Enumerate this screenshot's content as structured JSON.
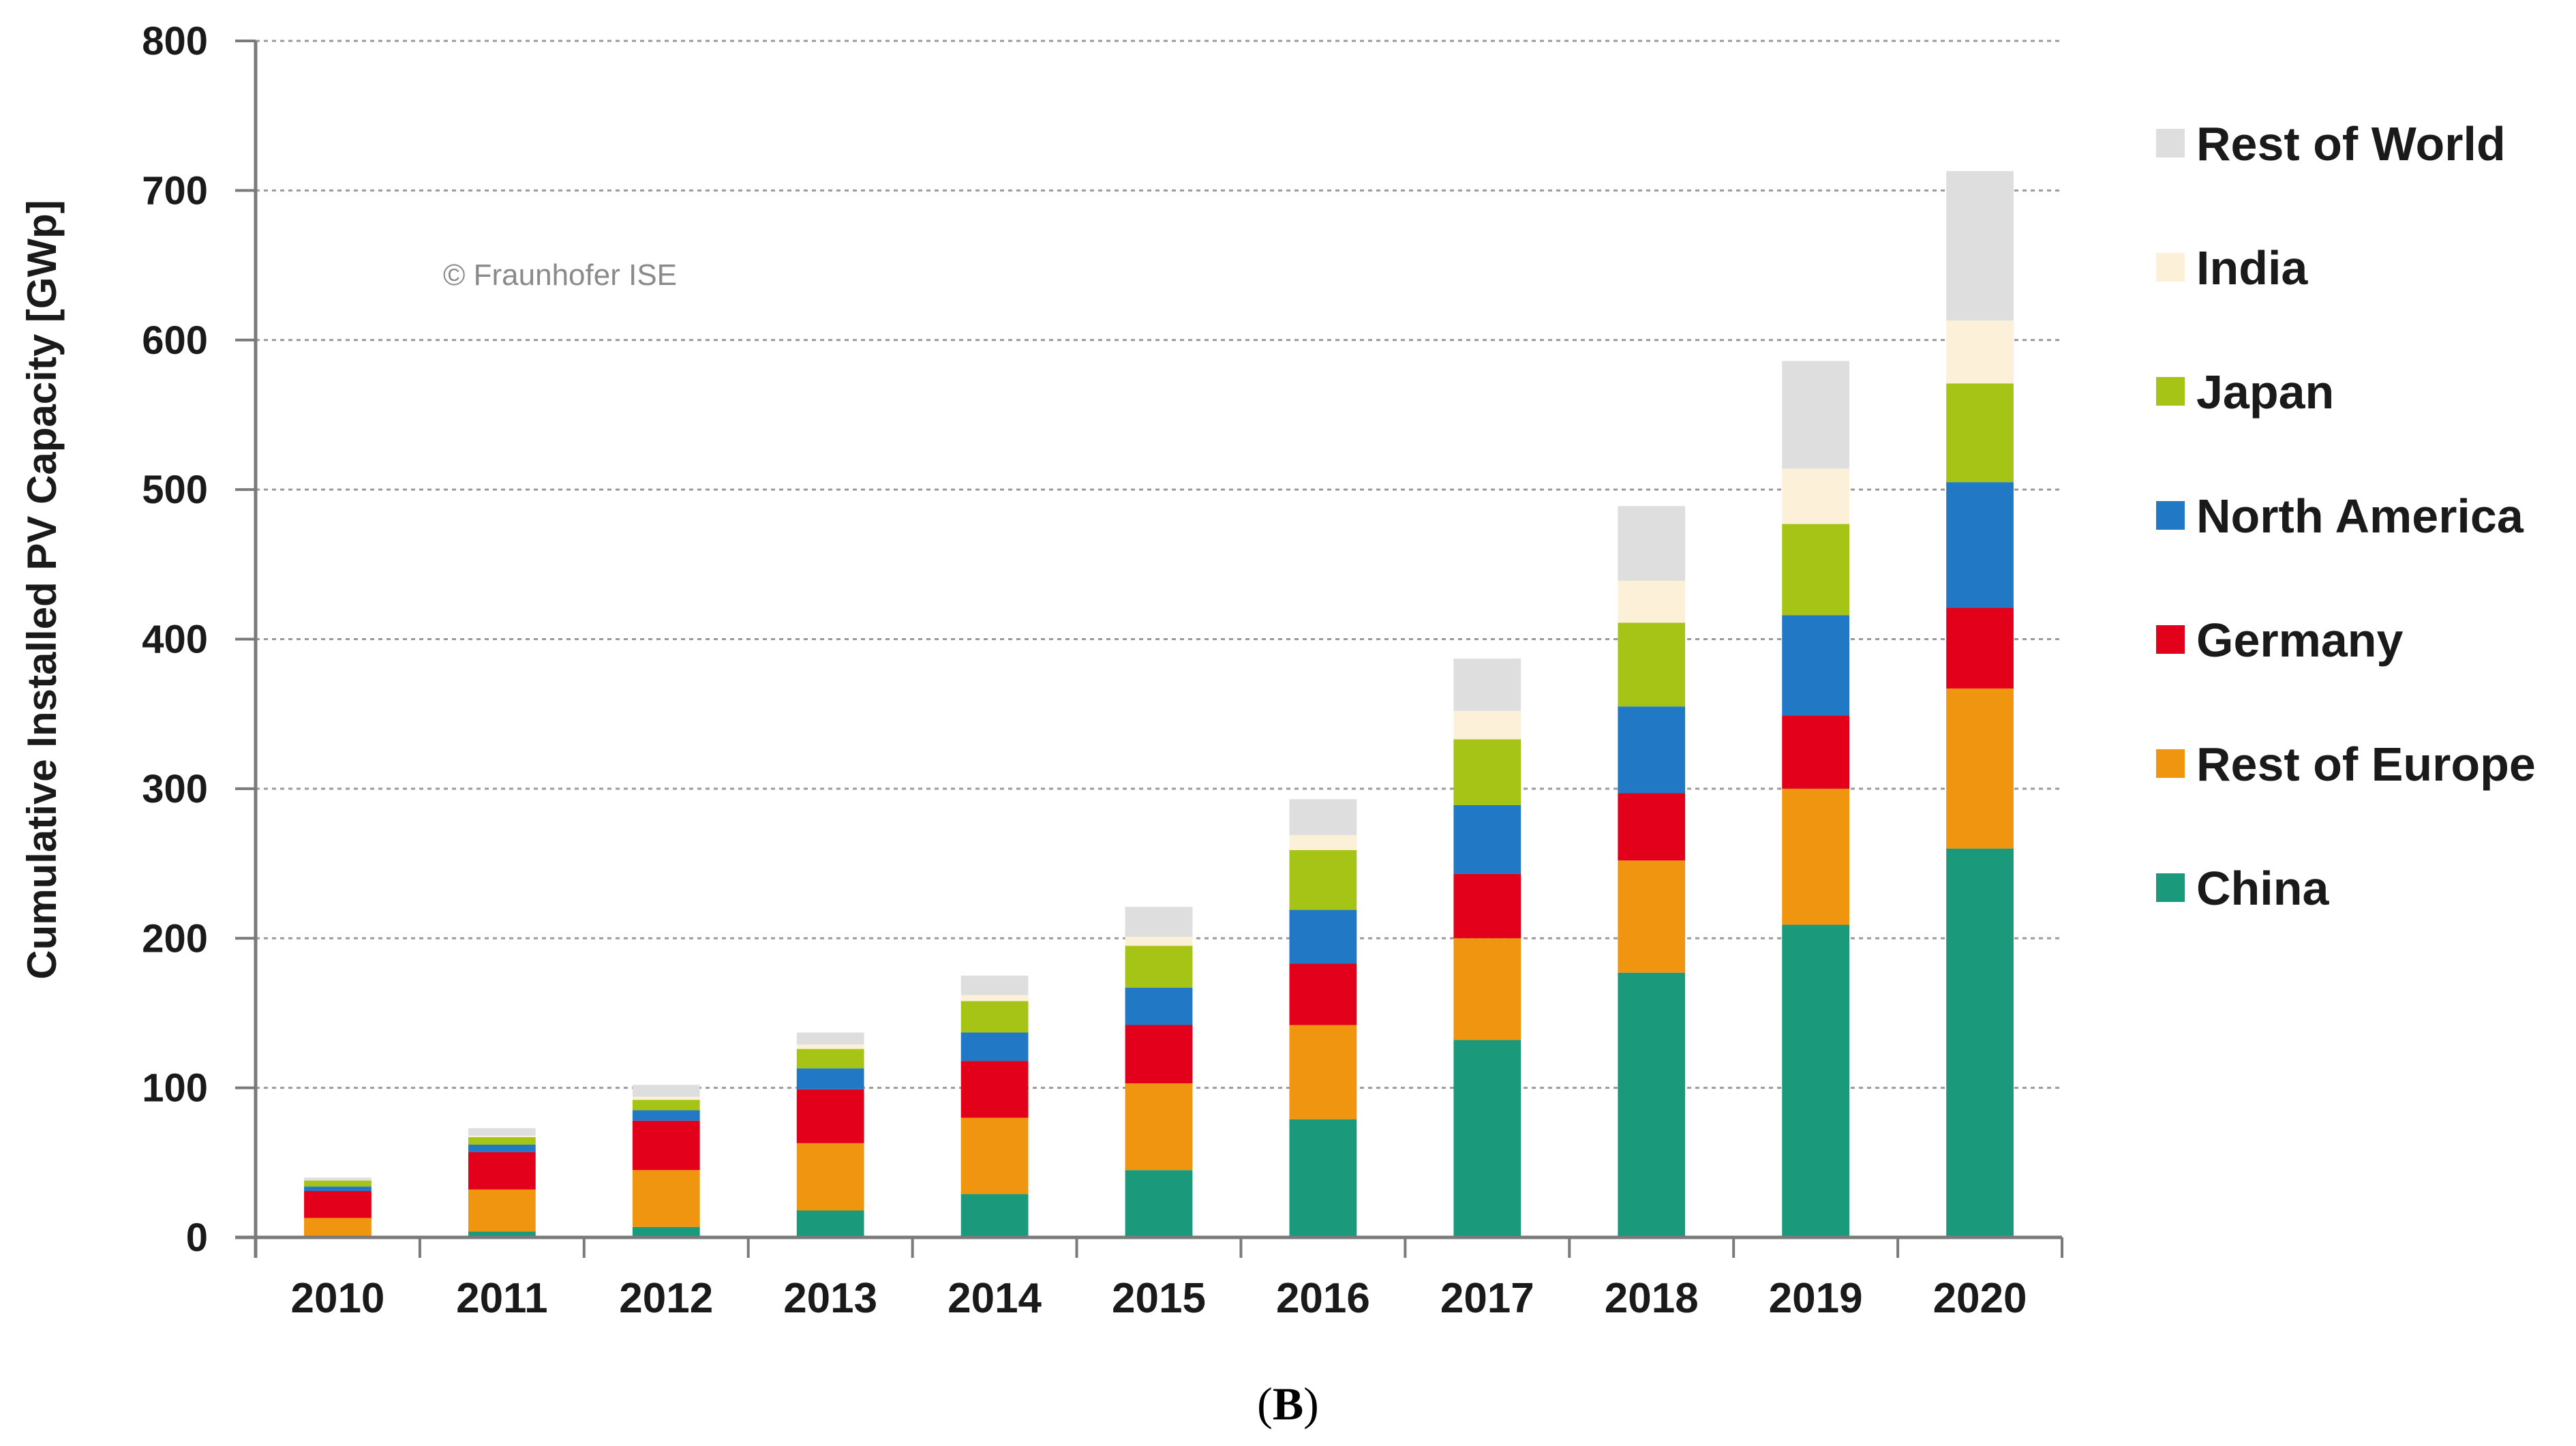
{
  "chart_data": {
    "type": "bar",
    "stacked": true,
    "title": "",
    "xlabel": "",
    "ylabel": "Cumulative Installed PV Capacity [GWp]",
    "ylim": [
      0,
      800
    ],
    "yticks": [
      0,
      100,
      200,
      300,
      400,
      500,
      600,
      700,
      800
    ],
    "grid": true,
    "legend_position": "right",
    "watermark": "© Fraunhofer ISE",
    "categories": [
      "2010",
      "2011",
      "2012",
      "2013",
      "2014",
      "2015",
      "2016",
      "2017",
      "2018",
      "2019",
      "2020"
    ],
    "series": [
      {
        "name": "China",
        "color": "#1a9a7a",
        "values": [
          1,
          4,
          7,
          18,
          29,
          45,
          79,
          132,
          177,
          209,
          260
        ]
      },
      {
        "name": "Rest of Europe",
        "color": "#f0950f",
        "values": [
          12,
          28,
          38,
          45,
          51,
          58,
          63,
          68,
          75,
          91,
          107
        ]
      },
      {
        "name": "Germany",
        "color": "#e2001a",
        "values": [
          18,
          25,
          33,
          36,
          38,
          39,
          41,
          43,
          45,
          49,
          54
        ]
      },
      {
        "name": "North America",
        "color": "#2178c4",
        "values": [
          3,
          5,
          7,
          14,
          19,
          25,
          36,
          46,
          58,
          67,
          84
        ]
      },
      {
        "name": "Japan",
        "color": "#a6c415",
        "values": [
          4,
          5,
          7,
          13,
          21,
          28,
          40,
          44,
          56,
          61,
          66
        ]
      },
      {
        "name": "India",
        "color": "#fdf0d9",
        "values": [
          0,
          1,
          2,
          3,
          4,
          6,
          10,
          19,
          28,
          37,
          42
        ]
      },
      {
        "name": "Rest of World",
        "color": "#dedede",
        "values": [
          2,
          5,
          8,
          8,
          13,
          20,
          24,
          35,
          50,
          72,
          100
        ]
      }
    ]
  },
  "caption": {
    "prefix": "(",
    "label": "B",
    "suffix": ")"
  }
}
